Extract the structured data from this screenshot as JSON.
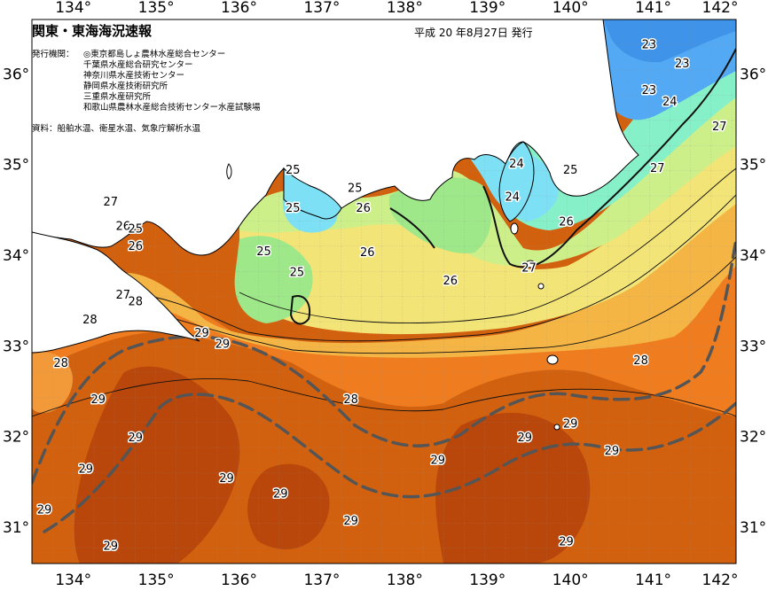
{
  "title": "関東・東海海況速報",
  "issued": "平成 20 年8月27日 発行",
  "issuers_label": "発行機関：",
  "issuers": [
    "◎東京都島しょ農林水産総合センター",
    "千葉県水産総合研究センター",
    "神奈川県水産技術センター",
    "静岡県水産技術研究所",
    "三重県水産研究所",
    "和歌山県農林水産総合技術センター水産試験場"
  ],
  "source": "資料：船舶水温、衛星水温、気象庁解析水温",
  "axes": {
    "lon_labels": [
      "134°",
      "135°",
      "136°",
      "137°",
      "138°",
      "139°",
      "140°",
      "141°",
      "142°"
    ],
    "lat_labels": [
      "36°",
      "35°",
      "34°",
      "33°",
      "32°",
      "31°"
    ]
  },
  "colors": {
    "c23": "#4da6ff",
    "c24": "#7fe0ff",
    "c25": "#7fff7f",
    "c26": "#d7f58a",
    "c27": "#f7e07a",
    "c28": "#f29a3a",
    "c29": "#d9650f",
    "c30": "#b8480c",
    "land": "#ffffff",
    "kuroshio": "#555555"
  },
  "isotherm_labels": [
    {
      "text": "23",
      "lon": 140.95,
      "lat": 35.78
    },
    {
      "text": "23",
      "lon": 141.35,
      "lat": 36.07
    },
    {
      "text": "23",
      "lon": 140.95,
      "lat": 36.28
    },
    {
      "text": "24",
      "lon": 141.2,
      "lat": 35.65
    },
    {
      "text": "27",
      "lon": 141.8,
      "lat": 35.38
    },
    {
      "text": "27",
      "lon": 141.05,
      "lat": 34.92
    },
    {
      "text": "25",
      "lon": 136.65,
      "lat": 34.9
    },
    {
      "text": "25",
      "lon": 136.65,
      "lat": 34.48
    },
    {
      "text": "26",
      "lon": 137.5,
      "lat": 34.48
    },
    {
      "text": "25",
      "lon": 137.4,
      "lat": 34.7
    },
    {
      "text": "24",
      "lon": 139.35,
      "lat": 34.97
    },
    {
      "text": "24",
      "lon": 139.3,
      "lat": 34.6
    },
    {
      "text": "25",
      "lon": 140.0,
      "lat": 34.9
    },
    {
      "text": "26",
      "lon": 139.95,
      "lat": 34.33
    },
    {
      "text": "27",
      "lon": 139.5,
      "lat": 33.82
    },
    {
      "text": "26",
      "lon": 137.55,
      "lat": 33.99
    },
    {
      "text": "26",
      "lon": 138.55,
      "lat": 33.68
    },
    {
      "text": "25",
      "lon": 136.3,
      "lat": 34.0
    },
    {
      "text": "25",
      "lon": 136.7,
      "lat": 33.77
    },
    {
      "text": "27",
      "lon": 134.45,
      "lat": 34.55
    },
    {
      "text": "26",
      "lon": 134.6,
      "lat": 34.28
    },
    {
      "text": "25",
      "lon": 134.75,
      "lat": 34.25
    },
    {
      "text": "26",
      "lon": 134.75,
      "lat": 34.06
    },
    {
      "text": "27",
      "lon": 134.6,
      "lat": 33.52
    },
    {
      "text": "28",
      "lon": 134.75,
      "lat": 33.45
    },
    {
      "text": "28",
      "lon": 134.2,
      "lat": 33.25
    },
    {
      "text": "28",
      "lon": 133.85,
      "lat": 32.77
    },
    {
      "text": "29",
      "lon": 135.55,
      "lat": 33.1
    },
    {
      "text": "29",
      "lon": 135.8,
      "lat": 32.98
    },
    {
      "text": "28",
      "lon": 140.85,
      "lat": 32.8
    },
    {
      "text": "28",
      "lon": 137.35,
      "lat": 32.37
    },
    {
      "text": "29",
      "lon": 134.3,
      "lat": 32.37
    },
    {
      "text": "29",
      "lon": 134.75,
      "lat": 31.95
    },
    {
      "text": "29",
      "lon": 134.15,
      "lat": 31.6
    },
    {
      "text": "29",
      "lon": 135.85,
      "lat": 31.5
    },
    {
      "text": "29",
      "lon": 133.65,
      "lat": 31.15
    },
    {
      "text": "29",
      "lon": 136.5,
      "lat": 31.33
    },
    {
      "text": "29",
      "lon": 138.4,
      "lat": 31.7
    },
    {
      "text": "29",
      "lon": 139.45,
      "lat": 31.95
    },
    {
      "text": "29",
      "lon": 140.0,
      "lat": 32.1
    },
    {
      "text": "29",
      "lon": 140.5,
      "lat": 31.8
    },
    {
      "text": "29",
      "lon": 137.35,
      "lat": 31.03
    },
    {
      "text": "29",
      "lon": 134.45,
      "lat": 30.75
    },
    {
      "text": "29",
      "lon": 139.95,
      "lat": 30.8
    }
  ]
}
